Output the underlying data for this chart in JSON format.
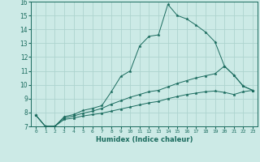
{
  "xlabel": "Humidex (Indice chaleur)",
  "bg_color": "#cceae6",
  "grid_color": "#aed4cf",
  "line_color": "#1a6b5e",
  "xlim": [
    -0.5,
    23.5
  ],
  "ylim": [
    7,
    16
  ],
  "yticks": [
    7,
    8,
    9,
    10,
    11,
    12,
    13,
    14,
    15,
    16
  ],
  "xticks": [
    0,
    1,
    2,
    3,
    4,
    5,
    6,
    7,
    8,
    9,
    10,
    11,
    12,
    13,
    14,
    15,
    16,
    17,
    18,
    19,
    20,
    21,
    22,
    23
  ],
  "series": [
    {
      "x": [
        0,
        1,
        2,
        3,
        4,
        5,
        6,
        7,
        8,
        9,
        10,
        11,
        12,
        13,
        14,
        15,
        16,
        17,
        18,
        19,
        20,
        21,
        22,
        23
      ],
      "y": [
        7.8,
        7.0,
        7.0,
        7.7,
        7.85,
        8.15,
        8.3,
        8.5,
        9.5,
        10.6,
        11.0,
        12.8,
        13.5,
        13.6,
        15.8,
        15.0,
        14.75,
        14.3,
        13.8,
        13.1,
        11.35,
        10.7,
        9.9,
        9.6
      ]
    },
    {
      "x": [
        0,
        1,
        2,
        3,
        4,
        5,
        6,
        7,
        8,
        9,
        10,
        11,
        12,
        13,
        14,
        15,
        16,
        17,
        18,
        19,
        20,
        21,
        22,
        23
      ],
      "y": [
        7.8,
        7.0,
        7.0,
        7.6,
        7.75,
        7.95,
        8.1,
        8.3,
        8.6,
        8.85,
        9.1,
        9.3,
        9.5,
        9.6,
        9.85,
        10.1,
        10.3,
        10.5,
        10.65,
        10.8,
        11.35,
        10.7,
        9.9,
        9.6
      ]
    },
    {
      "x": [
        0,
        1,
        2,
        3,
        4,
        5,
        6,
        7,
        8,
        9,
        10,
        11,
        12,
        13,
        14,
        15,
        16,
        17,
        18,
        19,
        20,
        21,
        22,
        23
      ],
      "y": [
        7.8,
        7.0,
        7.0,
        7.5,
        7.6,
        7.75,
        7.85,
        7.95,
        8.1,
        8.25,
        8.4,
        8.55,
        8.7,
        8.8,
        9.0,
        9.15,
        9.3,
        9.4,
        9.5,
        9.55,
        9.45,
        9.3,
        9.5,
        9.6
      ]
    }
  ]
}
